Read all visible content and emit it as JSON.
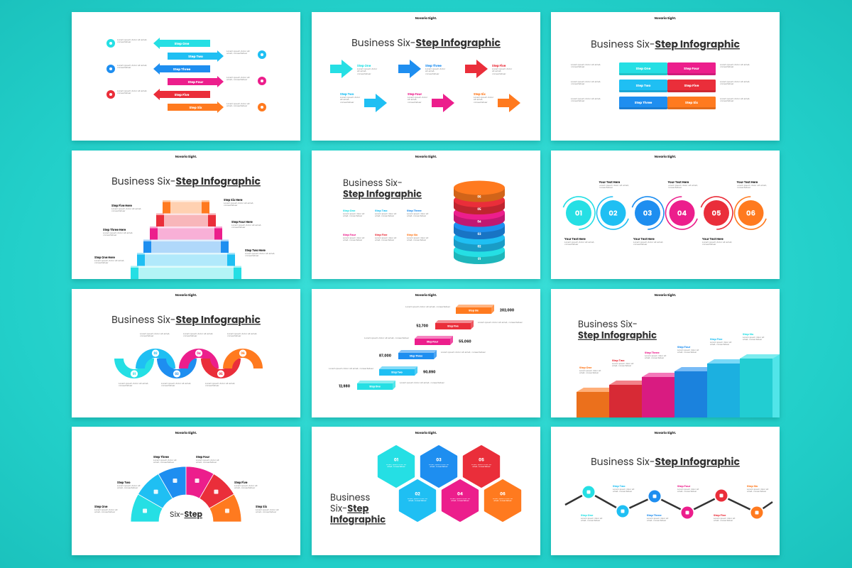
{
  "lorem": "Lorem ipsum dolor sit amet, consectetuer",
  "slides": [
    {
      "labels": [
        "Step One",
        "Step Two",
        "Step Three",
        "Step Four",
        "Step Five",
        "Step Six"
      ]
    },
    {
      "brand": "Novaria Sight.",
      "title": [
        "Business Six-",
        "Step Infographic"
      ],
      "labels": [
        "Step One",
        "Step Two",
        "Step Three",
        "Step Four",
        "Step Five",
        "Step Six"
      ]
    },
    {
      "brand": "Novaria Sight.",
      "title": [
        "Business Six-",
        "Step Infographic"
      ],
      "labels": [
        "Step One",
        "Step Two",
        "Step Three",
        "Step Four",
        "Step Five",
        "Step Six"
      ]
    },
    {
      "brand": "Novaria Sight.",
      "title": [
        "Business Six-",
        "Step Infographic"
      ],
      "labels": [
        "Step One Here",
        "Step Two Here",
        "Step Three Here",
        "Step Four Here",
        "Step Five Here",
        "Step Six Here"
      ]
    },
    {
      "brand": "Novaria Sight.",
      "title": [
        "Business Six-",
        "Step Infographic"
      ],
      "labels": [
        "Step One",
        "Step Two",
        "Step Three",
        "Step Four",
        "Step Five",
        "Step Six"
      ],
      "numbers": [
        "01",
        "02",
        "03",
        "04",
        "05",
        "06"
      ]
    },
    {
      "brand": "Novaria Sight.",
      "labels": [
        "Your Text Here",
        "Your Text Here",
        "Your Text Here",
        "Your Text Here",
        "Your Text Here",
        "Your Text Here"
      ],
      "numbers": [
        "01",
        "02",
        "03",
        "04",
        "05",
        "06"
      ]
    },
    {
      "brand": "Novaria Sight.",
      "title": [
        "Business Six-",
        "Step Infographic"
      ],
      "numbers": [
        "01",
        "02",
        "03",
        "04",
        "05",
        "06"
      ]
    },
    {
      "brand": "Novaria Sight.",
      "labels": [
        "Step One",
        "Step Two",
        "Step Three",
        "Step Four",
        "Step Five",
        "Step Six"
      ],
      "values": [
        "12,980",
        "90,890",
        "87,000",
        "55,060",
        "52,700",
        "202,000"
      ]
    },
    {
      "brand": "Novaria Sight.",
      "title": [
        "Business Six-",
        "Step Infographic"
      ],
      "labels": [
        "Step One",
        "Step Two",
        "Step Three",
        "Step Four",
        "Step Five",
        "Step Six"
      ]
    },
    {
      "brand": "Novaria Sight.",
      "title": [
        "Six-",
        "Step"
      ],
      "labels": [
        "Step One",
        "Step Two",
        "Step Three",
        "Step Four",
        "Step Five",
        "Step Six"
      ]
    },
    {
      "brand": "Novaria Sight.",
      "title": [
        "Business",
        "Six-",
        "Step",
        "Infographic"
      ],
      "numbers": [
        "01",
        "02",
        "03",
        "04",
        "05",
        "06"
      ]
    },
    {
      "brand": "Novaria Sight.",
      "title": [
        "Business Six-",
        "Step Infographic"
      ],
      "labels": [
        "Step One",
        "Step Two",
        "Step Three",
        "Step Four",
        "Step Five",
        "Step Six"
      ]
    }
  ]
}
